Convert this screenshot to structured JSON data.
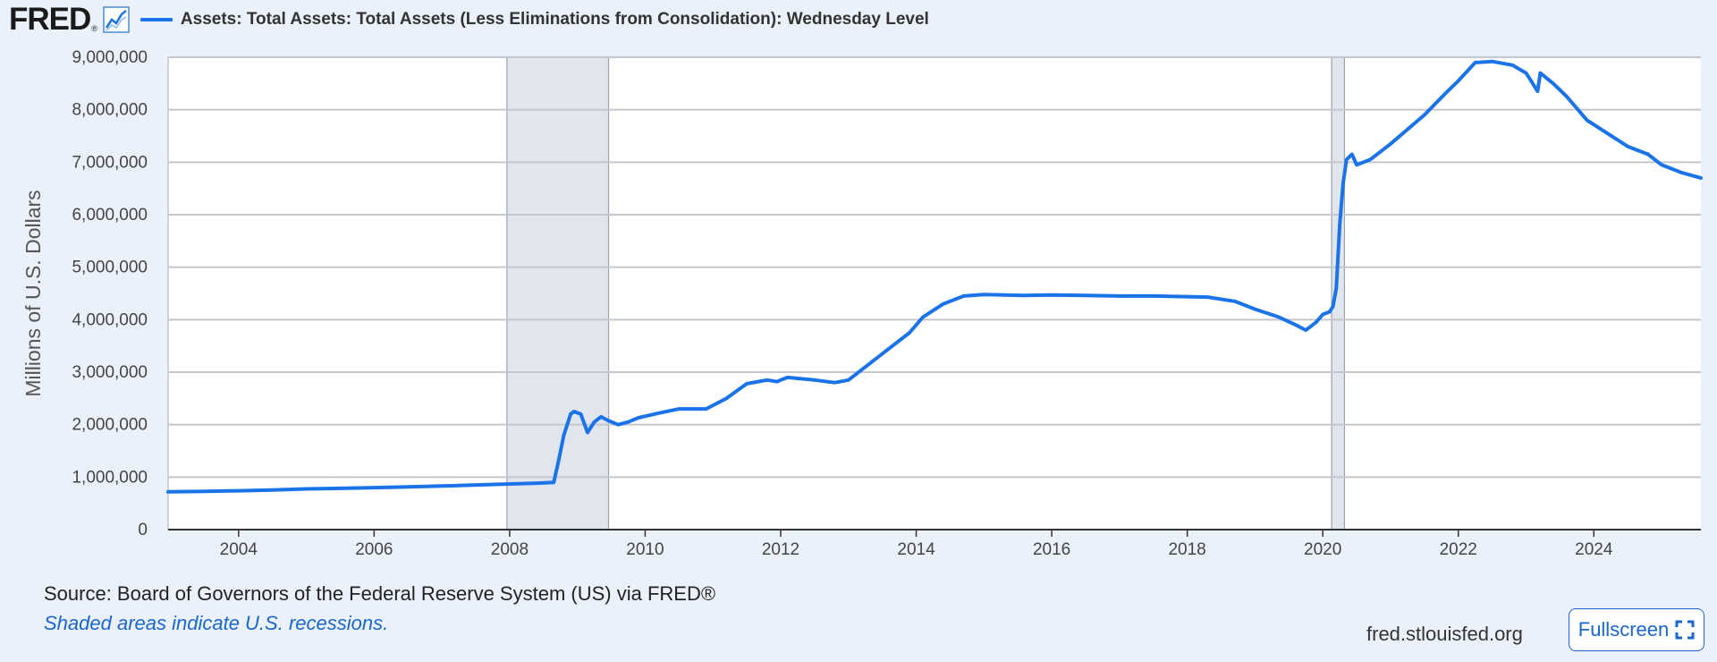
{
  "logo": {
    "text": "FRED",
    "reg": "®",
    "icon": "line-chart-icon"
  },
  "legend": {
    "label": "Assets: Total Assets: Total Assets (Less Eliminations from Consolidation): Wednesday Level",
    "color": "#1a73e8"
  },
  "footer": {
    "source": "Source: Board of Governors of the Federal Reserve System (US) via FRED®",
    "note": "Shaded areas indicate U.S. recessions.",
    "site": "fred.stlouisfed.org",
    "fullscreen_label": "Fullscreen",
    "fullscreen_icon": "expand-icon"
  },
  "chart_data": {
    "type": "line",
    "title": "Assets: Total Assets: Total Assets (Less Eliminations from Consolidation): Wednesday Level",
    "xlabel": "",
    "ylabel": "Millions of U.S. Dollars",
    "xlim": [
      2002.96,
      2025.58
    ],
    "ylim": [
      0,
      9000000
    ],
    "xticks": [
      2004,
      2006,
      2008,
      2010,
      2012,
      2014,
      2016,
      2018,
      2020,
      2022,
      2024
    ],
    "yticks": [
      0,
      1000000,
      2000000,
      3000000,
      4000000,
      5000000,
      6000000,
      7000000,
      8000000,
      9000000
    ],
    "ytick_labels": [
      "0",
      "1,000,000",
      "2,000,000",
      "3,000,000",
      "4,000,000",
      "5,000,000",
      "6,000,000",
      "7,000,000",
      "8,000,000",
      "9,000,000"
    ],
    "grid": true,
    "recessions": [
      {
        "start": 2007.96,
        "end": 2009.46
      },
      {
        "start": 2020.13,
        "end": 2020.32
      }
    ],
    "series": [
      {
        "name": "Assets: Total Assets: Total Assets (Less Eliminations from Consolidation): Wednesday Level",
        "color": "#1a73e8",
        "x": [
          2002.96,
          2003.5,
          2004,
          2004.5,
          2005,
          2005.5,
          2006,
          2006.5,
          2007,
          2007.5,
          2008,
          2008.4,
          2008.65,
          2008.72,
          2008.8,
          2008.9,
          2008.95,
          2009.05,
          2009.15,
          2009.25,
          2009.35,
          2009.45,
          2009.6,
          2009.75,
          2009.9,
          2010.2,
          2010.5,
          2010.9,
          2011.2,
          2011.5,
          2011.8,
          2011.95,
          2012.0,
          2012.1,
          2012.5,
          2012.8,
          2013.0,
          2013.3,
          2013.6,
          2013.9,
          2014.1,
          2014.4,
          2014.7,
          2015.0,
          2015.3,
          2015.6,
          2016.0,
          2016.5,
          2017.0,
          2017.5,
          2017.9,
          2018.3,
          2018.7,
          2019.0,
          2019.35,
          2019.6,
          2019.75,
          2019.9,
          2020.0,
          2020.1,
          2020.15,
          2020.2,
          2020.25,
          2020.3,
          2020.35,
          2020.43,
          2020.5,
          2020.7,
          2021.0,
          2021.5,
          2021.8,
          2022.0,
          2022.25,
          2022.5,
          2022.8,
          2023.0,
          2023.17,
          2023.21,
          2023.4,
          2023.6,
          2023.9,
          2024.2,
          2024.5,
          2024.8,
          2025.0,
          2025.3,
          2025.58
        ],
        "values": [
          720000,
          730000,
          740000,
          755000,
          775000,
          785000,
          800000,
          815000,
          830000,
          850000,
          870000,
          885000,
          900000,
          1300000,
          1800000,
          2200000,
          2250000,
          2200000,
          1850000,
          2050000,
          2150000,
          2080000,
          2000000,
          2050000,
          2130000,
          2220000,
          2300000,
          2300000,
          2500000,
          2780000,
          2850000,
          2820000,
          2850000,
          2900000,
          2850000,
          2800000,
          2850000,
          3150000,
          3450000,
          3750000,
          4050000,
          4300000,
          4450000,
          4480000,
          4470000,
          4460000,
          4470000,
          4460000,
          4450000,
          4450000,
          4440000,
          4430000,
          4350000,
          4200000,
          4050000,
          3900000,
          3800000,
          3950000,
          4100000,
          4150000,
          4250000,
          4600000,
          5800000,
          6600000,
          7050000,
          7150000,
          6950000,
          7050000,
          7350000,
          7900000,
          8300000,
          8550000,
          8900000,
          8920000,
          8850000,
          8700000,
          8350000,
          8700000,
          8500000,
          8250000,
          7800000,
          7550000,
          7300000,
          7150000,
          6950000,
          6800000,
          6700000
        ]
      }
    ]
  }
}
